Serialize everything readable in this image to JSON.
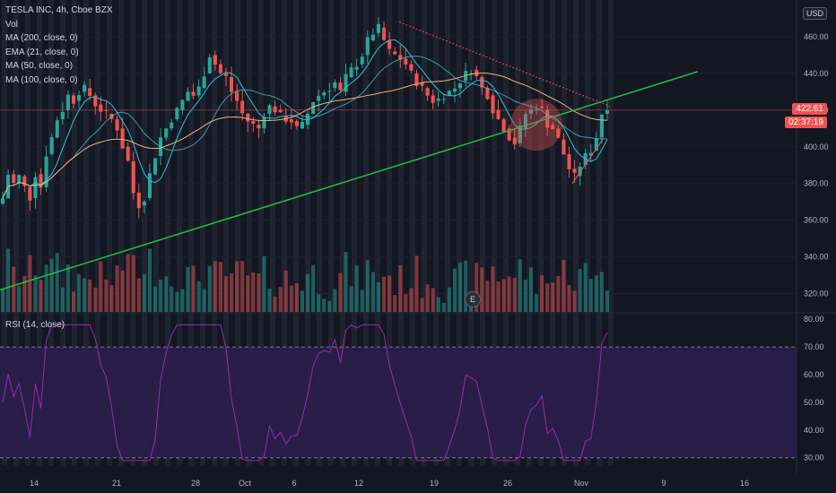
{
  "legend": {
    "symbol": "TESLA INC, 4h, Cboe BZX",
    "vol": "Vol",
    "ma200": "MA (200, close, 0)",
    "ema21": "EMA (21, close, 0)",
    "ma50": "MA (50, close, 0)",
    "ma100": "MA (100, close, 0)"
  },
  "rsi_legend": "RSI (14, close)",
  "currency": "USD",
  "last_price": "422.61",
  "countdown": "02:37:19",
  "earnings_marker": "E",
  "colors": {
    "up": "#26a69a",
    "down": "#ef5350",
    "trend": "#22c03c",
    "ma200": "#f0b07a",
    "ema": "#26c6da",
    "rsi": "#9c27b0"
  },
  "chart_data": {
    "type": "candlestick",
    "price_axis": {
      "ticks": [
        320,
        340,
        360,
        380,
        400,
        420,
        440,
        460
      ],
      "ylim": [
        310,
        480
      ]
    },
    "rsi_axis": {
      "ticks": [
        30,
        40,
        50,
        60,
        70,
        80
      ],
      "ylim": [
        27,
        82
      ],
      "bands": [
        30,
        70
      ]
    },
    "x_ticks": [
      "14",
      "21",
      "28",
      "Oct",
      "6",
      "12",
      "19",
      "26",
      "Nov",
      "9",
      "16"
    ],
    "price_path": [
      372,
      385,
      380,
      384,
      378,
      372,
      385,
      378,
      396,
      405,
      415,
      420,
      428,
      425,
      430,
      432,
      428,
      423,
      420,
      418,
      415,
      410,
      400,
      392,
      375,
      368,
      372,
      385,
      395,
      405,
      410,
      415,
      420,
      425,
      430,
      428,
      432,
      440,
      450,
      445,
      440,
      438,
      430,
      425,
      418,
      414,
      412,
      410,
      418,
      422,
      420,
      417,
      415,
      414,
      410,
      412,
      418,
      425,
      428,
      430,
      432,
      435,
      430,
      438,
      442,
      445,
      450,
      458,
      462,
      465,
      458,
      452,
      450,
      448,
      445,
      440,
      435,
      432,
      428,
      425,
      426,
      428,
      430,
      432,
      436,
      440,
      442,
      438,
      432,
      428,
      420,
      415,
      410,
      405,
      402,
      410,
      418,
      420,
      422,
      420,
      412,
      410,
      404,
      396,
      388,
      384,
      390,
      395,
      398,
      405,
      418,
      422
    ]
  }
}
